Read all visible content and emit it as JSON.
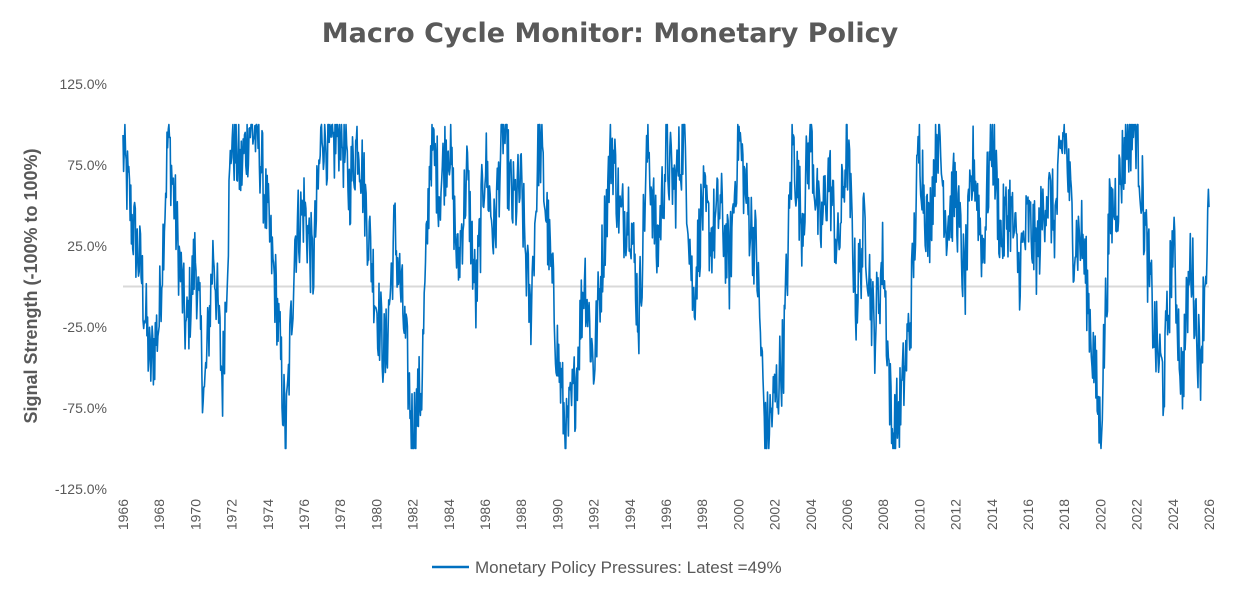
{
  "chart_data": {
    "type": "line",
    "title": "Macro Cycle Monitor: Monetary Policy",
    "ylabel": "Signal Strength (-100% to 100%)",
    "xlabel": "",
    "ylim": [
      -1.25,
      1.25
    ],
    "xlim": [
      1966,
      2026
    ],
    "y_ticks": [
      "125.0%",
      "75.0%",
      "25.0%",
      "-25.0%",
      "-75.0%",
      "-125.0%"
    ],
    "x_ticks": [
      "1966",
      "1968",
      "1970",
      "1972",
      "1974",
      "1976",
      "1978",
      "1980",
      "1982",
      "1984",
      "1986",
      "1988",
      "1990",
      "1992",
      "1994",
      "1996",
      "1998",
      "2000",
      "2002",
      "2004",
      "2006",
      "2008",
      "2010",
      "2012",
      "2014",
      "2016",
      "2018",
      "2020",
      "2022",
      "2024",
      "2026"
    ],
    "grid": false,
    "legend_position": "bottom",
    "series": [
      {
        "name": "Monetary Policy Pressures: Latest =49%",
        "color": "#0070C0",
        "x": [
          1966.0,
          1966.5,
          1967.0,
          1967.5,
          1968.0,
          1968.5,
          1969.0,
          1969.5,
          1970.0,
          1970.5,
          1971.0,
          1971.5,
          1972.0,
          1972.5,
          1973.0,
          1973.5,
          1974.0,
          1974.5,
          1975.0,
          1975.5,
          1976.0,
          1976.5,
          1977.0,
          1977.5,
          1978.0,
          1978.5,
          1979.0,
          1979.5,
          1980.0,
          1980.5,
          1981.0,
          1981.5,
          1982.0,
          1982.5,
          1983.0,
          1983.5,
          1984.0,
          1984.5,
          1985.0,
          1985.5,
          1986.0,
          1986.5,
          1987.0,
          1987.5,
          1988.0,
          1988.5,
          1989.0,
          1989.5,
          1990.0,
          1990.5,
          1991.0,
          1991.5,
          1992.0,
          1992.5,
          1993.0,
          1993.5,
          1994.0,
          1994.5,
          1995.0,
          1995.5,
          1996.0,
          1996.5,
          1997.0,
          1997.5,
          1998.0,
          1998.5,
          1999.0,
          1999.5,
          2000.0,
          2000.5,
          2001.0,
          2001.5,
          2002.0,
          2002.5,
          2003.0,
          2003.5,
          2004.0,
          2004.5,
          2005.0,
          2005.5,
          2006.0,
          2006.5,
          2007.0,
          2007.5,
          2008.0,
          2008.5,
          2009.0,
          2009.5,
          2010.0,
          2010.5,
          2011.0,
          2011.5,
          2012.0,
          2012.5,
          2013.0,
          2013.5,
          2014.0,
          2014.5,
          2015.0,
          2015.5,
          2016.0,
          2016.5,
          2017.0,
          2017.5,
          2018.0,
          2018.5,
          2019.0,
          2019.5,
          2020.0,
          2020.5,
          2021.0,
          2021.5,
          2022.0,
          2022.5,
          2023.0,
          2023.5,
          2024.0,
          2024.5,
          2025.0,
          2025.5,
          2026.0
        ],
        "values": [
          0.85,
          0.4,
          0.1,
          -0.5,
          -0.2,
          0.95,
          0.3,
          -0.3,
          0.2,
          -0.7,
          0.25,
          -0.6,
          0.95,
          0.7,
          1.0,
          0.9,
          0.4,
          -0.1,
          -0.95,
          0.3,
          0.5,
          0.1,
          1.0,
          0.8,
          1.0,
          0.6,
          0.95,
          0.4,
          -0.1,
          -0.45,
          0.35,
          -0.2,
          -0.9,
          -0.6,
          0.9,
          0.6,
          0.95,
          0.1,
          0.7,
          -0.1,
          0.8,
          0.3,
          1.0,
          0.5,
          0.6,
          -0.2,
          0.95,
          0.3,
          -0.4,
          -0.95,
          -0.6,
          0.1,
          -0.5,
          0.2,
          0.9,
          0.4,
          0.5,
          -0.2,
          0.9,
          0.2,
          0.8,
          0.6,
          0.95,
          -0.1,
          0.5,
          0.3,
          0.5,
          0.1,
          0.95,
          0.5,
          0.2,
          -0.95,
          -0.7,
          -0.4,
          0.9,
          0.4,
          0.95,
          0.3,
          0.7,
          0.2,
          0.9,
          -0.1,
          0.4,
          -0.3,
          0.2,
          -0.95,
          -0.7,
          -0.2,
          0.9,
          0.3,
          1.0,
          0.4,
          0.6,
          0.0,
          0.8,
          0.2,
          0.95,
          0.3,
          0.5,
          0.1,
          0.4,
          0.2,
          0.6,
          0.4,
          1.0,
          0.3,
          0.3,
          -0.3,
          -0.9,
          0.4,
          0.6,
          0.95,
          1.0,
          0.3,
          -0.3,
          -0.6,
          0.3,
          -0.6,
          0.2,
          -0.5,
          0.49
        ]
      }
    ]
  }
}
